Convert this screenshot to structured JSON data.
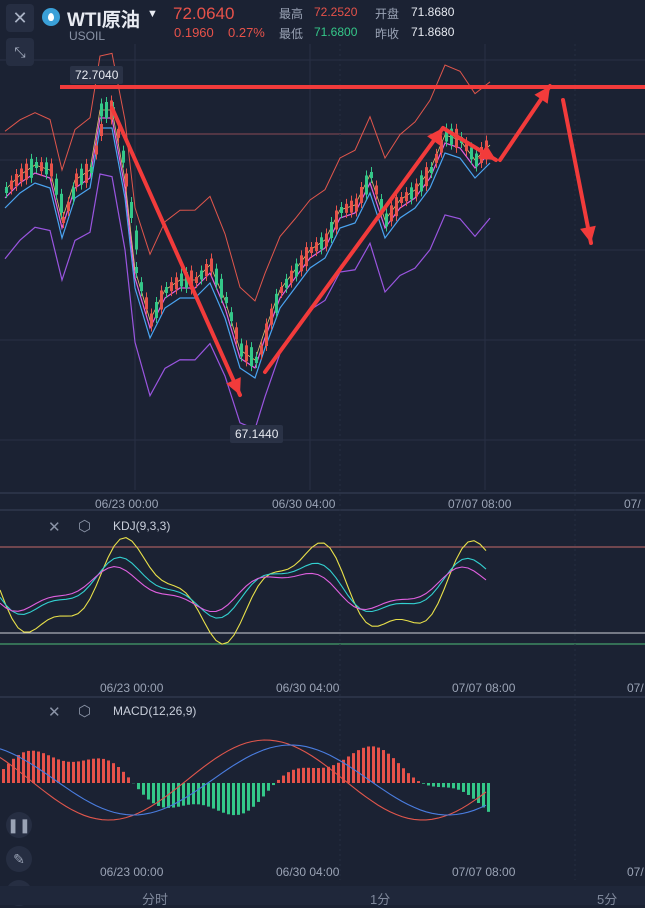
{
  "header": {
    "symbol_name": "WTI原油",
    "symbol_code": "USOIL",
    "price": "72.0640",
    "change": "0.1960",
    "change_pct": "0.27%",
    "high_label": "最高",
    "high_value": "72.2520",
    "low_label": "最低",
    "low_value": "71.6800",
    "open_label": "开盘",
    "open_value": "71.8680",
    "prev_label": "昨收",
    "prev_value": "71.8680"
  },
  "main_chart": {
    "max_tag": "72.7040",
    "min_tag": "67.1440",
    "x_labels": [
      "06/23 00:00",
      "06/30 04:00",
      "07/07 08:00",
      "07/"
    ]
  },
  "kdj": {
    "title": "KDJ(9,3,3)",
    "x_labels": [
      "06/23 00:00",
      "06/30 04:00",
      "07/07 08:00",
      "07/"
    ]
  },
  "macd": {
    "title": "MACD(12,26,9)",
    "x_labels": [
      "06/23 00:00",
      "06/30 04:00",
      "07/07 08:00",
      "07/"
    ]
  },
  "bottom_tabs": [
    "分时",
    "1分",
    "5分"
  ],
  "colors": {
    "up": "#e7524a",
    "down": "#34c889",
    "background": "#1b2233",
    "arrow": "#f23b3b"
  },
  "icons": {
    "close": "close-icon",
    "expand": "expand-icon",
    "symbol": "oil-drop-icon",
    "dropdown": "chevron-down-icon",
    "settings": "gear-icon",
    "candle": "candlestick-icon",
    "draw": "pencil-icon",
    "indicator": "wave-icon"
  }
}
